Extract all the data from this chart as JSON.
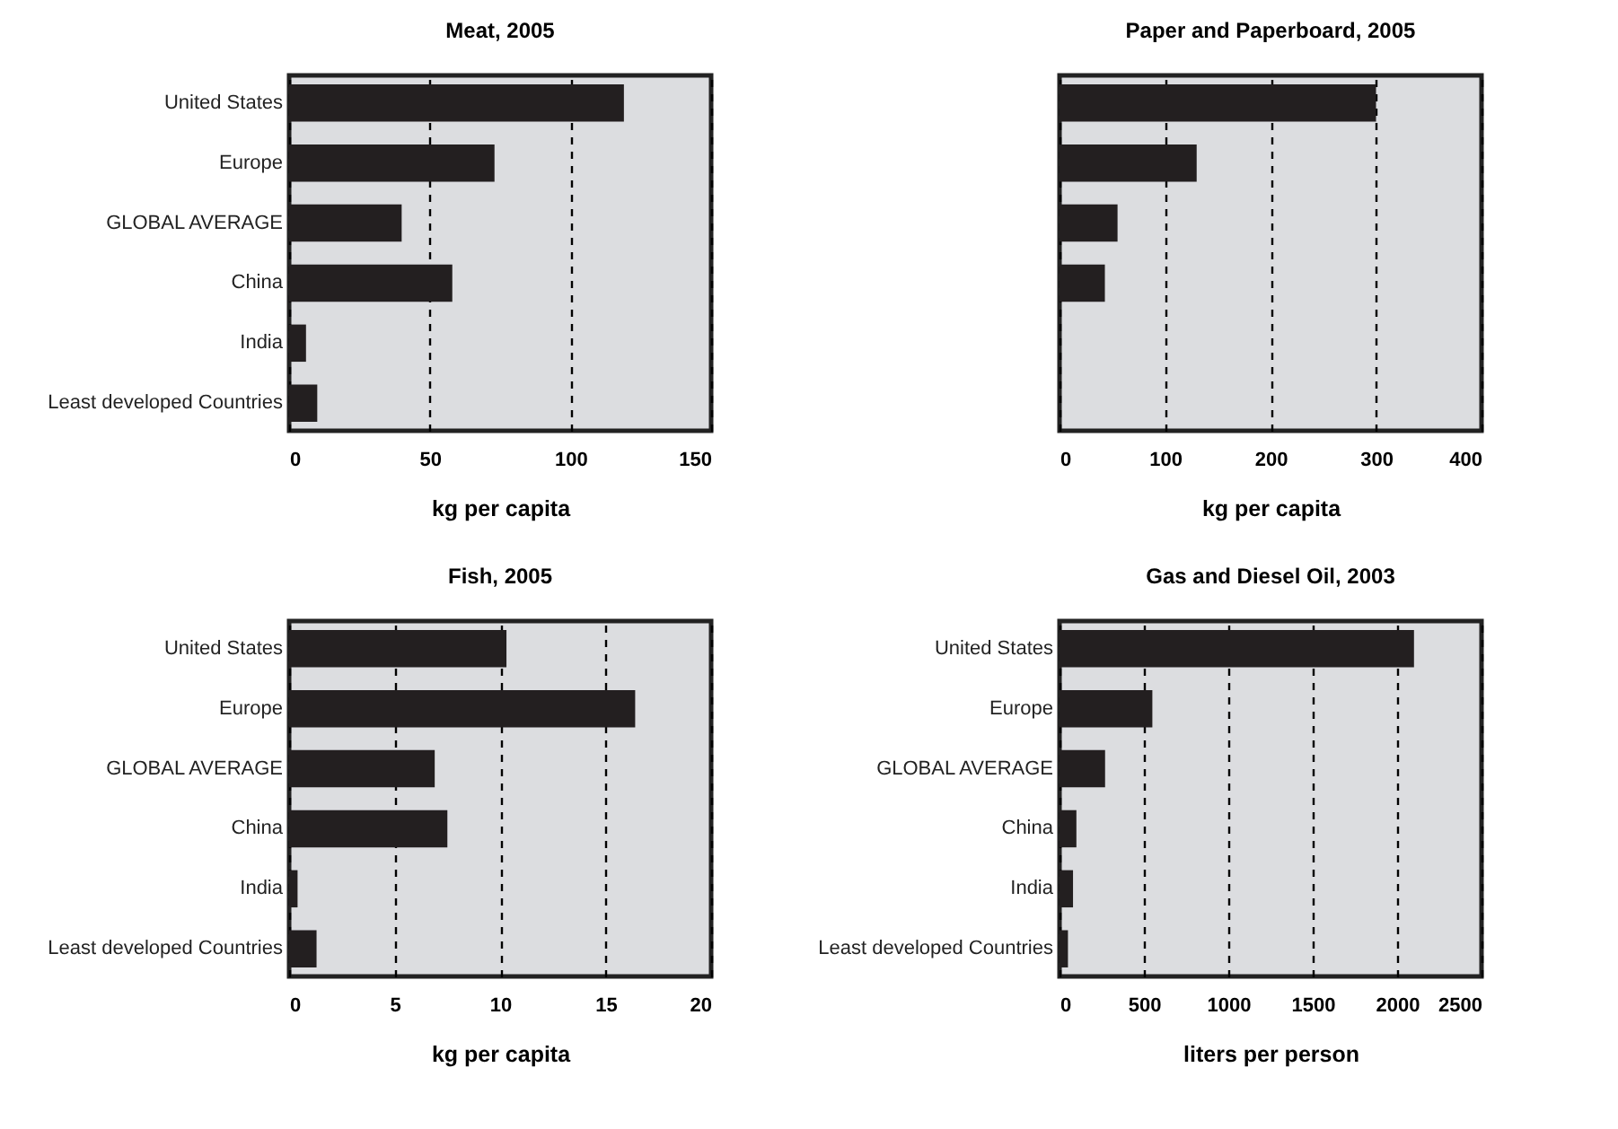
{
  "chart_data": [
    {
      "type": "bar",
      "orientation": "horizontal",
      "title": "Meat, 2005",
      "xlabel": "kg per capita",
      "categories": [
        "United States",
        "Europe",
        "GLOBAL AVERAGE",
        "China",
        "India",
        "Least developed Countries"
      ],
      "values": [
        119,
        73,
        40,
        58,
        6,
        10
      ],
      "color": "#231f20",
      "xlim": [
        0,
        150
      ],
      "xticks": [
        0,
        50,
        100,
        150
      ],
      "grid": "x"
    },
    {
      "type": "bar",
      "orientation": "horizontal",
      "title": "Paper and Paperboard, 2005",
      "xlabel": "kg per capita",
      "categories": [
        null,
        null,
        null,
        null,
        null,
        null
      ],
      "values": [
        300,
        130,
        55,
        43,
        null,
        null
      ],
      "color": "#231f20",
      "xlim": [
        0,
        400
      ],
      "xticks": [
        0,
        100,
        200,
        300,
        400
      ],
      "grid": "x"
    },
    {
      "type": "bar",
      "orientation": "horizontal",
      "title": "Fish, 2005",
      "xlabel": "kg per capita",
      "categories": [
        "United States",
        "Europe",
        "GLOBAL AVERAGE",
        "China",
        "India",
        "Least developed Countries"
      ],
      "values": [
        10.3,
        16.4,
        6.9,
        7.5,
        0.4,
        1.3
      ],
      "color": "#231f20",
      "xlim": [
        0,
        20
      ],
      "xticks": [
        0,
        5,
        10,
        15,
        20
      ],
      "grid": "x"
    },
    {
      "type": "bar",
      "orientation": "horizontal",
      "title": "Gas and Diesel Oil, 2003",
      "xlabel": "liters per person",
      "categories": [
        "United States",
        "Europe",
        "GLOBAL AVERAGE",
        "China",
        "India",
        "Least developed Countries"
      ],
      "values": [
        2100,
        550,
        270,
        100,
        80,
        50
      ],
      "color": "#231f20",
      "xlim": [
        0,
        2500
      ],
      "xticks": [
        0,
        500,
        1000,
        1500,
        2000,
        2500
      ],
      "grid": "x"
    }
  ]
}
